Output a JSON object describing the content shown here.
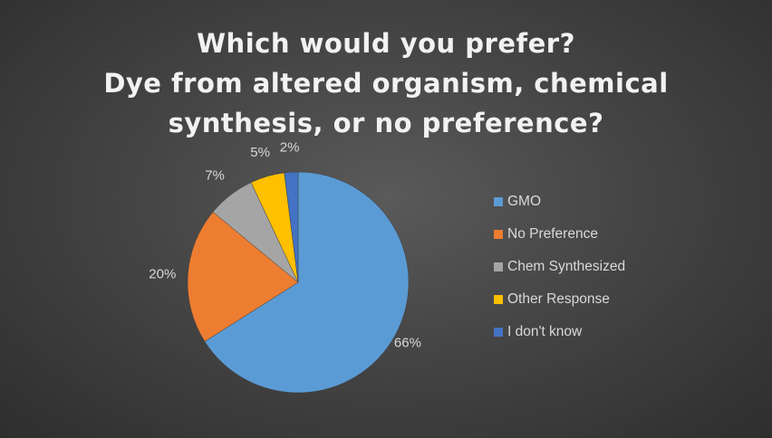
{
  "chart_data": {
    "type": "pie",
    "title_lines": [
      "Which would you prefer?",
      "Dye from altered organism, chemical",
      "synthesis, or no preference?"
    ],
    "slices": [
      {
        "name": "GMO",
        "value": 66,
        "label": "66%",
        "color": "#5b9bd5"
      },
      {
        "name": "No Preference",
        "value": 20,
        "label": "20%",
        "color": "#ed7d31"
      },
      {
        "name": "Chem Synthesized",
        "value": 7,
        "label": "7%",
        "color": "#a5a5a5"
      },
      {
        "name": "Other Response",
        "value": 5,
        "label": "5%",
        "color": "#ffc000"
      },
      {
        "name": "I don't know",
        "value": 2,
        "label": "2%",
        "color": "#4472c4"
      }
    ],
    "start": "top",
    "direction": "clockwise",
    "legend_position": "right"
  }
}
